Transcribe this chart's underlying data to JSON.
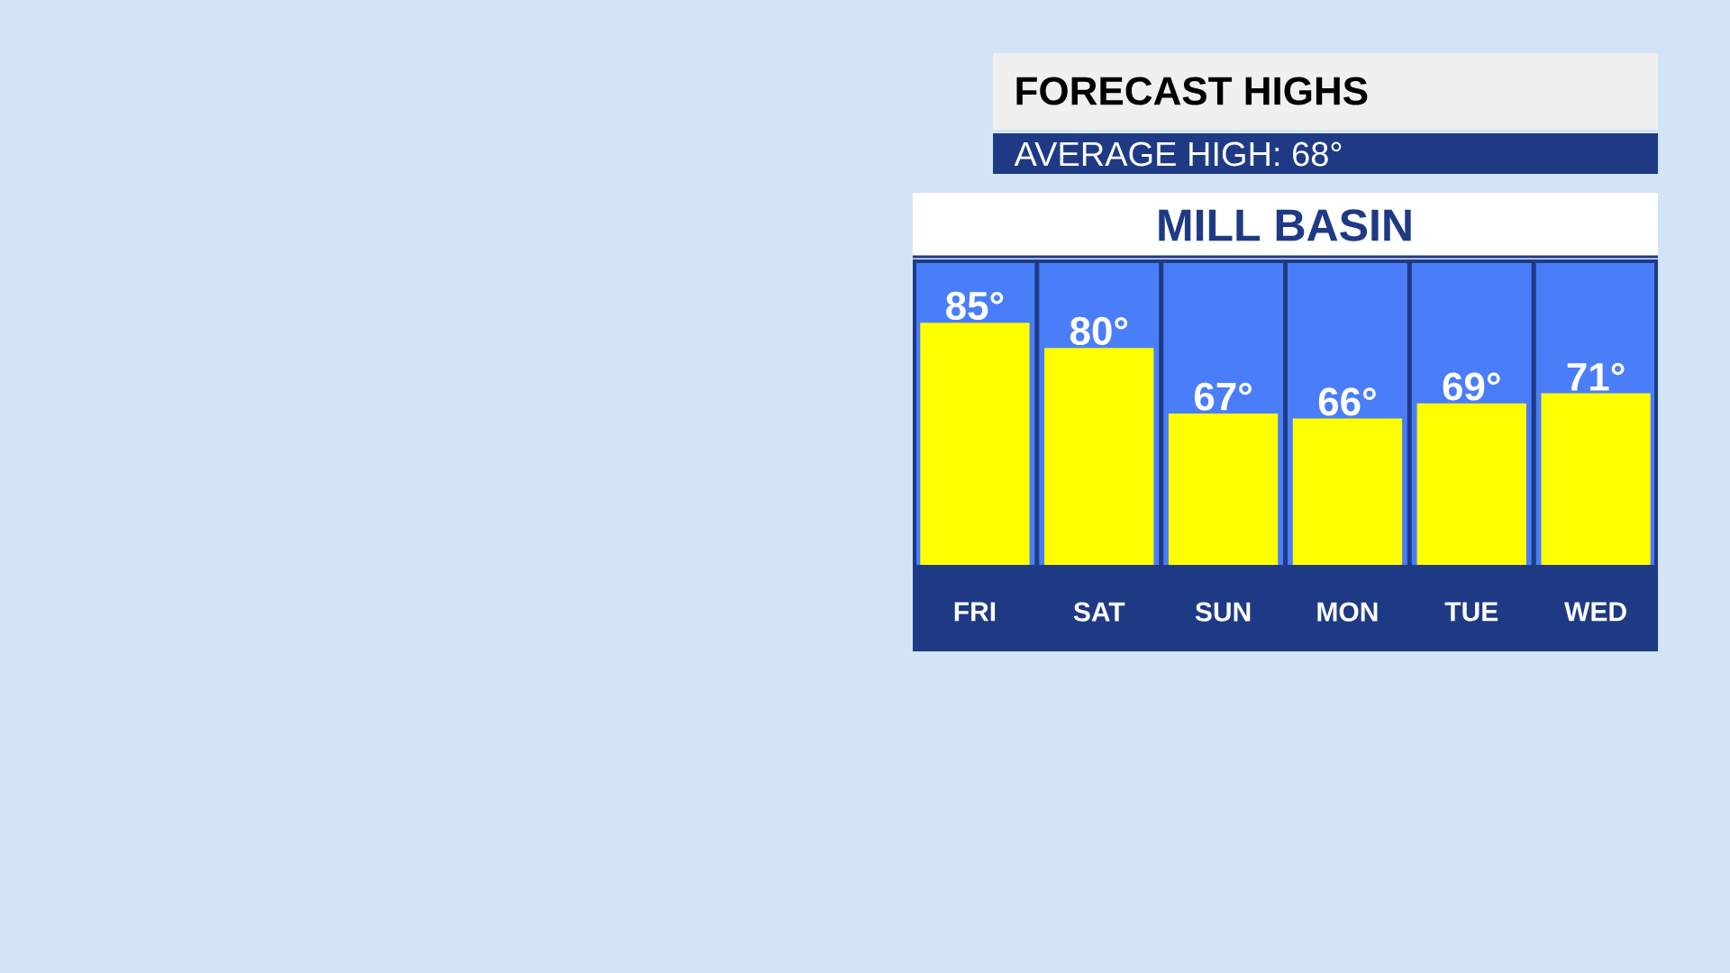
{
  "chart_data": {
    "type": "bar",
    "title": "FORECAST HIGHS",
    "subtitle": "AVERAGE HIGH: 68°",
    "annotations": [
      "MILL BASIN"
    ],
    "categories": [
      "FRI",
      "SAT",
      "SUN",
      "MON",
      "TUE",
      "WED"
    ],
    "values": [
      85,
      80,
      67,
      66,
      69,
      71
    ],
    "value_labels": [
      "85°",
      "80°",
      "67°",
      "66°",
      "69°",
      "71°"
    ],
    "color": "#ffff00",
    "ylim": [
      37,
      97
    ],
    "tick_labels": "x"
  }
}
